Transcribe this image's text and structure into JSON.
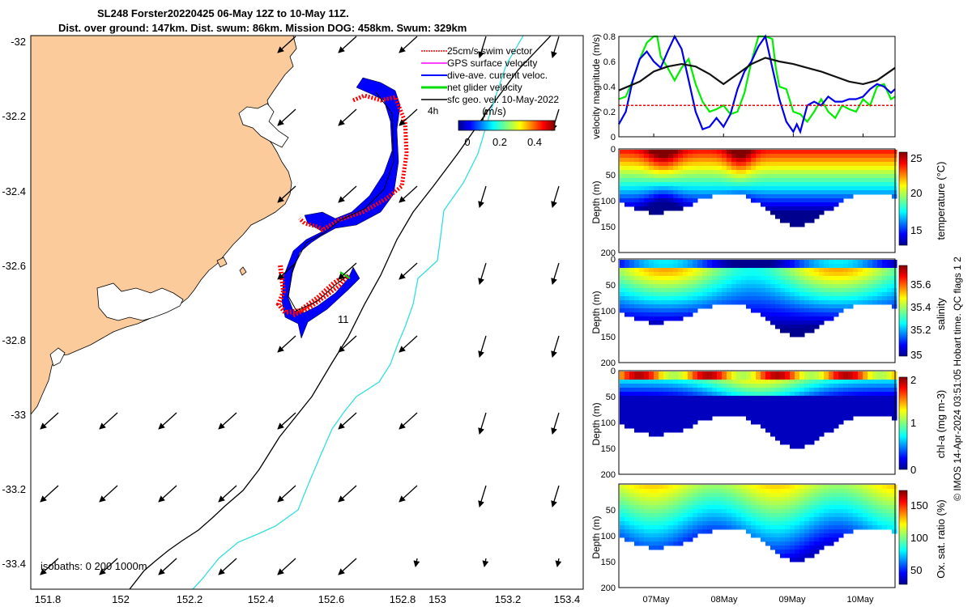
{
  "title": {
    "line1": "SL248 Forster20220425 06-May 12Z to 10-May 11Z.",
    "line2": "Dist. over ground: 147km. Dist. swum: 86km. Mission DOG: 458km. Swum: 329km"
  },
  "map": {
    "xticks": [
      "151.8",
      "152",
      "152.2",
      "152.4",
      "152.6",
      "152.8",
      "153",
      "153.2",
      "153.4"
    ],
    "yticks": [
      "-32",
      "-32.2",
      "-32.4",
      "-32.6",
      "-32.8",
      "-33",
      "-33.2",
      "-33.4"
    ],
    "legend": [
      {
        "label": "25cm/s swim vector",
        "color": "#ff0000"
      },
      {
        "label": "GPS surface velocity",
        "color": "#ff00ff"
      },
      {
        "label": "dive-ave. current veloc.",
        "color": "#0000ff"
      },
      {
        "label": "net glider velocity",
        "color": "#00dd00"
      },
      {
        "label": "sfc geo. vel. 10-May-2022",
        "color": "#000000"
      }
    ],
    "scale_label": "4h",
    "colorbar_label": "(m/s)",
    "colorbar_ticks": [
      "0",
      "0.2",
      "0.4"
    ],
    "track_label": "11",
    "isobaths_label": "isobaths: 0   200  1000m",
    "land_color": "#fbcb9c"
  },
  "chart_data": [
    {
      "type": "line",
      "ylabel": "velocity magnitude (m/s)",
      "ylim": [
        0,
        0.8
      ],
      "yticks": [
        "0",
        "0.2",
        "0.4",
        "0.6",
        "0.8"
      ],
      "x_range_days": [
        6.5,
        10.458
      ],
      "series": [
        {
          "color": "#00ee00",
          "x": [
            6.5,
            6.6,
            6.7,
            6.8,
            6.9,
            7.0,
            7.05,
            7.1,
            7.2,
            7.3,
            7.4,
            7.5,
            7.6,
            7.7,
            7.8,
            7.9,
            8.0,
            8.1,
            8.2,
            8.3,
            8.4,
            8.5,
            8.6,
            8.7,
            8.75,
            8.8,
            8.9,
            9.0,
            9.1,
            9.2,
            9.3,
            9.4,
            9.5,
            9.6,
            9.7,
            9.8,
            9.9,
            10.0,
            10.1,
            10.2,
            10.3,
            10.4,
            10.458
          ],
          "y": [
            0.3,
            0.32,
            0.45,
            0.62,
            0.75,
            0.8,
            0.8,
            0.64,
            0.55,
            0.45,
            0.55,
            0.62,
            0.42,
            0.28,
            0.2,
            0.22,
            0.25,
            0.18,
            0.2,
            0.35,
            0.6,
            0.8,
            0.8,
            0.78,
            0.55,
            0.4,
            0.38,
            0.2,
            0.18,
            0.12,
            0.2,
            0.3,
            0.2,
            0.15,
            0.25,
            0.22,
            0.2,
            0.3,
            0.25,
            0.4,
            0.42,
            0.3,
            0.32
          ]
        },
        {
          "color": "#0000ee",
          "x": [
            6.5,
            6.6,
            6.7,
            6.8,
            6.9,
            7.0,
            7.1,
            7.2,
            7.3,
            7.4,
            7.5,
            7.6,
            7.7,
            7.8,
            7.9,
            8.0,
            8.1,
            8.2,
            8.3,
            8.4,
            8.5,
            8.6,
            8.7,
            8.8,
            8.9,
            9.0,
            9.05,
            9.1,
            9.2,
            9.3,
            9.4,
            9.5,
            9.6,
            9.7,
            9.8,
            9.9,
            10.0,
            10.1,
            10.2,
            10.3,
            10.4,
            10.458
          ],
          "y": [
            0.1,
            0.2,
            0.45,
            0.62,
            0.68,
            0.6,
            0.55,
            0.68,
            0.8,
            0.7,
            0.45,
            0.2,
            0.06,
            0.08,
            0.15,
            0.08,
            0.18,
            0.38,
            0.52,
            0.6,
            0.72,
            0.8,
            0.55,
            0.3,
            0.12,
            0.04,
            0.1,
            0.04,
            0.25,
            0.28,
            0.25,
            0.32,
            0.28,
            0.28,
            0.3,
            0.3,
            0.32,
            0.38,
            0.42,
            0.4,
            0.35,
            0.38
          ]
        },
        {
          "color": "#111111",
          "x": [
            6.5,
            6.8,
            7.0,
            7.2,
            7.4,
            7.6,
            7.8,
            8.0,
            8.2,
            8.4,
            8.6,
            8.8,
            9.0,
            9.2,
            9.4,
            9.6,
            9.8,
            10.0,
            10.2,
            10.458
          ],
          "y": [
            0.37,
            0.44,
            0.52,
            0.56,
            0.58,
            0.56,
            0.5,
            0.42,
            0.5,
            0.58,
            0.63,
            0.6,
            0.58,
            0.55,
            0.52,
            0.48,
            0.44,
            0.42,
            0.45,
            0.55
          ]
        },
        {
          "color": "#ff0000",
          "dashed": true,
          "x": [
            6.5,
            10.458
          ],
          "y": [
            0.25,
            0.25
          ]
        }
      ]
    },
    {
      "type": "heatmap",
      "ylabel": "Depth (m)",
      "clabel": "temperature (°C)",
      "yticks": [
        "0",
        "50",
        "100",
        "150",
        "200"
      ],
      "cticks": [
        "15",
        "20",
        "25"
      ],
      "clim": [
        12.5,
        25.5
      ]
    },
    {
      "type": "heatmap",
      "ylabel": "Depth (m)",
      "clabel": "salinity",
      "yticks": [
        "0",
        "50",
        "100",
        "150",
        "200"
      ],
      "cticks": [
        "35",
        "35.2",
        "35.4",
        "35.6"
      ],
      "clim": [
        34.98,
        35.7
      ]
    },
    {
      "type": "heatmap",
      "ylabel": "Depth (m)",
      "clabel": "chl-a (mg m-3)",
      "yticks": [
        "0",
        "50",
        "100",
        "150",
        "200"
      ],
      "cticks": [
        "0",
        "1",
        "2"
      ],
      "clim": [
        0,
        2
      ]
    },
    {
      "type": "heatmap",
      "ylabel": "Depth (m)",
      "clabel": "Ox. sat. ratio (%)",
      "yticks": [
        "50",
        "100",
        "150",
        "200"
      ],
      "cticks": [
        "50",
        "100",
        "150"
      ],
      "clim": [
        25,
        175
      ]
    }
  ],
  "time_axis": {
    "ticks": [
      "07May",
      "08May",
      "09May",
      "10May"
    ]
  },
  "credit": "© IMOS 14-Apr-2024 03:51:05 Hobart time. QC flags 1  2"
}
